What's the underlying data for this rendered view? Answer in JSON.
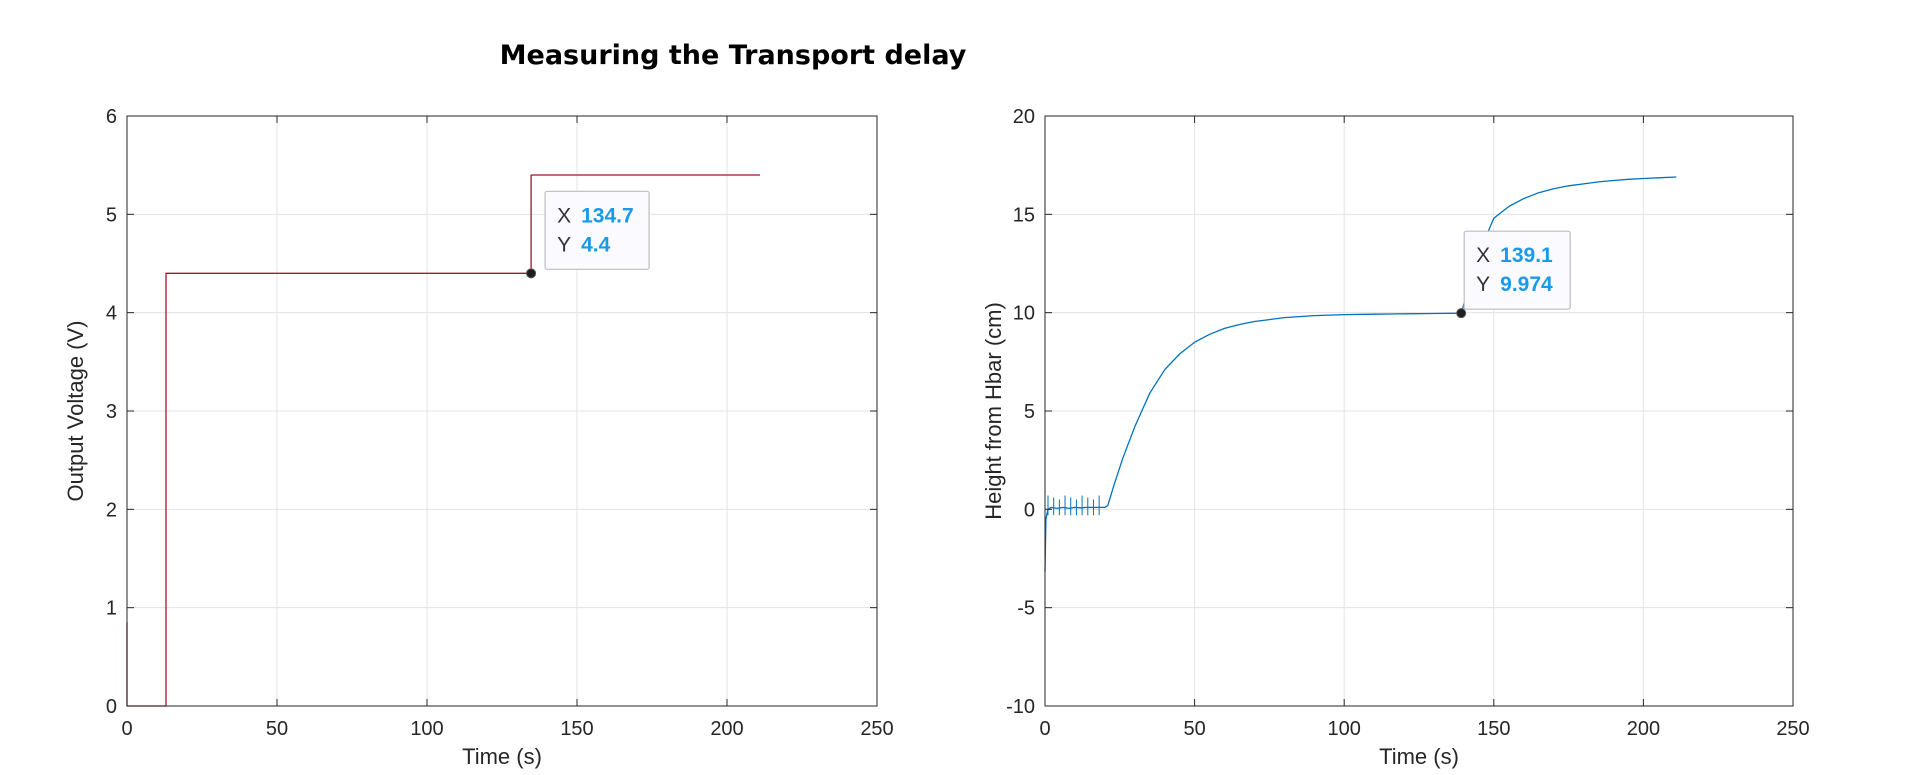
{
  "figure_title": "Measuring the Transport delay",
  "chart_data": [
    {
      "type": "line",
      "xlabel": "Time (s)",
      "ylabel": "Output Voltage (V)",
      "xlim": [
        0,
        250
      ],
      "ylim": [
        0,
        6
      ],
      "xticks": [
        "0",
        "50",
        "100",
        "150",
        "200",
        "250"
      ],
      "yticks": [
        "0",
        "1",
        "2",
        "3",
        "4",
        "5",
        "6"
      ],
      "grid": true,
      "color": "#a2142f",
      "series": [
        {
          "x": [
            0,
            0,
            0,
            0.4,
            0.4,
            13,
            13,
            13,
            13,
            134.7,
            134.7,
            134.7,
            211
          ],
          "y": [
            0.1,
            0.85,
            0,
            0,
            0,
            0,
            2.65,
            0,
            4.4,
            4.4,
            4.4,
            5.4,
            5.4
          ]
        }
      ],
      "datatip": {
        "x_key": "X",
        "x_value": "134.7",
        "y_key": "Y",
        "y_value": "4.4",
        "x": 134.7,
        "y": 4.4
      }
    },
    {
      "type": "line",
      "xlabel": "Time (s)",
      "ylabel": "Height from Hbar (cm)",
      "xlim": [
        0,
        250
      ],
      "ylim": [
        -10,
        20
      ],
      "xticks": [
        "0",
        "50",
        "100",
        "150",
        "200",
        "250"
      ],
      "yticks": [
        "-10",
        "-5",
        "0",
        "5",
        "10",
        "15",
        "20"
      ],
      "grid": true,
      "color": "#0072bd",
      "series": [
        {
          "x": [
            0,
            0.3,
            1,
            2,
            4,
            6,
            8,
            10,
            12,
            14,
            16,
            18,
            20,
            21,
            23,
            26,
            30,
            35,
            40,
            45,
            50,
            55,
            60,
            65,
            70,
            75,
            80,
            90,
            100,
            110,
            120,
            130,
            139.1,
            145,
            150,
            155,
            160,
            165,
            170,
            175,
            180,
            185,
            190,
            195,
            200,
            205,
            211
          ],
          "y": [
            -3.2,
            -0.5,
            0,
            0.1,
            0.05,
            0.1,
            0.05,
            0.1,
            0.08,
            0.1,
            0.1,
            0.1,
            0.1,
            0.2,
            1.2,
            2.6,
            4.2,
            5.9,
            7.1,
            7.9,
            8.5,
            8.9,
            9.2,
            9.4,
            9.55,
            9.65,
            9.75,
            9.85,
            9.9,
            9.92,
            9.94,
            9.96,
            9.974,
            13.0,
            14.8,
            15.4,
            15.8,
            16.1,
            16.3,
            16.45,
            16.55,
            16.65,
            16.72,
            16.78,
            16.82,
            16.86,
            16.9
          ]
        }
      ],
      "datatip": {
        "x_key": "X",
        "x_value": "139.1",
        "y_key": "Y",
        "y_value": "9.974",
        "x": 139.1,
        "y": 9.974
      }
    }
  ]
}
